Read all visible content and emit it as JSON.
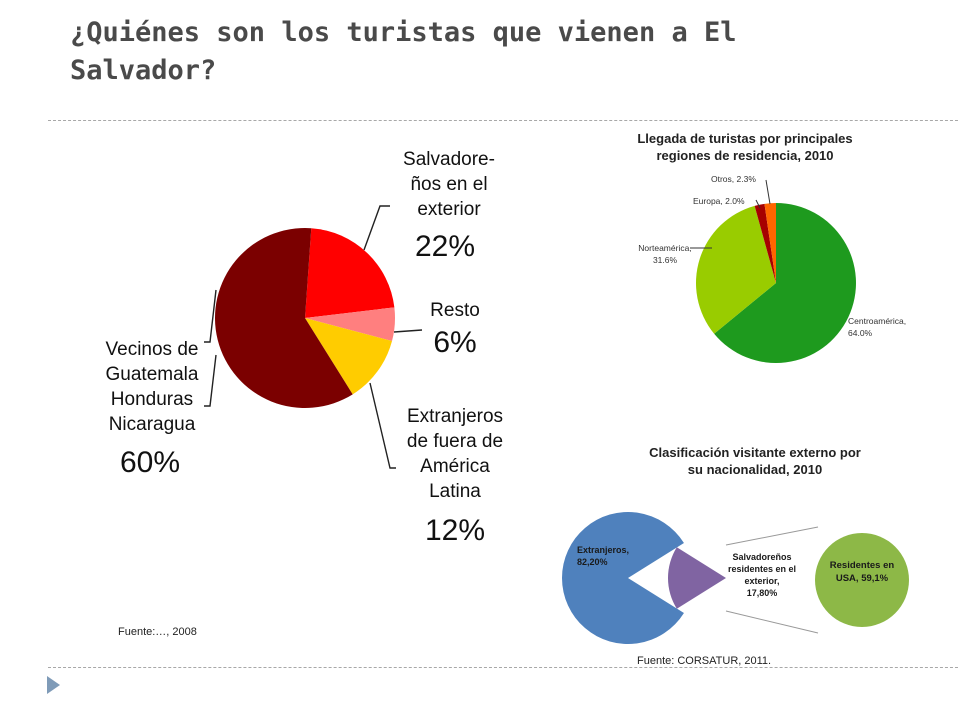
{
  "slide": {
    "title": "¿Quiénes son los turistas que vienen a El Salvador?",
    "source_left": "Fuente:…, 2008",
    "source_right": "Fuente: CORSATUR, 2011."
  },
  "colors": {
    "dark_red": "#7b0000",
    "red": "#ff0000",
    "salmon": "#ff7f7f",
    "yellow": "#ffcc00",
    "green": "#1e9a1e",
    "light_green": "#99cc00",
    "europe_red": "#a60000",
    "orange": "#ff6600",
    "blue": "#4f81bd",
    "purple": "#8064a2",
    "olive_green": "#8db847"
  },
  "chart_data": [
    {
      "type": "pie",
      "title": "",
      "slices": [
        {
          "label_lines": [
            "Salvadore-",
            "ños en el",
            "exterior"
          ],
          "pct_label": "22%",
          "value": 22,
          "color": "#ff0000"
        },
        {
          "label_lines": [
            "Resto"
          ],
          "pct_label": "6%",
          "value": 6,
          "color": "#ff7f7f"
        },
        {
          "label_lines": [
            "Extranjeros",
            "de fuera de",
            "América",
            "Latina"
          ],
          "pct_label": "12%",
          "value": 12,
          "color": "#ffcc00"
        },
        {
          "label_lines": [
            "Vecinos de",
            "Guatemala",
            "Honduras",
            "Nicaragua"
          ],
          "pct_label": "60%",
          "value": 60,
          "color": "#7b0000"
        }
      ]
    },
    {
      "type": "pie",
      "title": "Llegada de turistas por principales regiones de residencia, 2010",
      "title_lines": [
        "Llegada de turistas por principales",
        "regiones de residencia, 2010"
      ],
      "slices": [
        {
          "label_lines": [
            "Centroamérica,",
            "64.0%"
          ],
          "value": 64.0,
          "color": "#1e9a1e"
        },
        {
          "label_lines": [
            "Norteamérica,",
            "31.6%"
          ],
          "value": 31.6,
          "color": "#99cc00"
        },
        {
          "label_lines": [
            "Europa, 2.0%"
          ],
          "value": 2.0,
          "color": "#a60000"
        },
        {
          "label_lines": [
            "Otros, 2.3%"
          ],
          "value": 2.3,
          "color": "#ff6600"
        }
      ]
    },
    {
      "type": "pie",
      "title": "Clasificación visitante externo por su nacionalidad, 2010",
      "title_lines": [
        "Clasificación visitante externo por",
        "su nacionalidad, 2010"
      ],
      "slices": [
        {
          "label_lines": [
            "Extranjeros,",
            "82,20%"
          ],
          "value": 82.2,
          "color": "#4f81bd"
        },
        {
          "label_lines": [
            "Salvadoreños",
            "residentes en el",
            "exterior,",
            "17,80%"
          ],
          "value": 17.8,
          "color": "#8064a2"
        }
      ],
      "breakdown": {
        "label_lines": [
          "Residentes en",
          "USA, 59,1%"
        ],
        "value": 59.1,
        "color": "#8db847"
      }
    }
  ]
}
